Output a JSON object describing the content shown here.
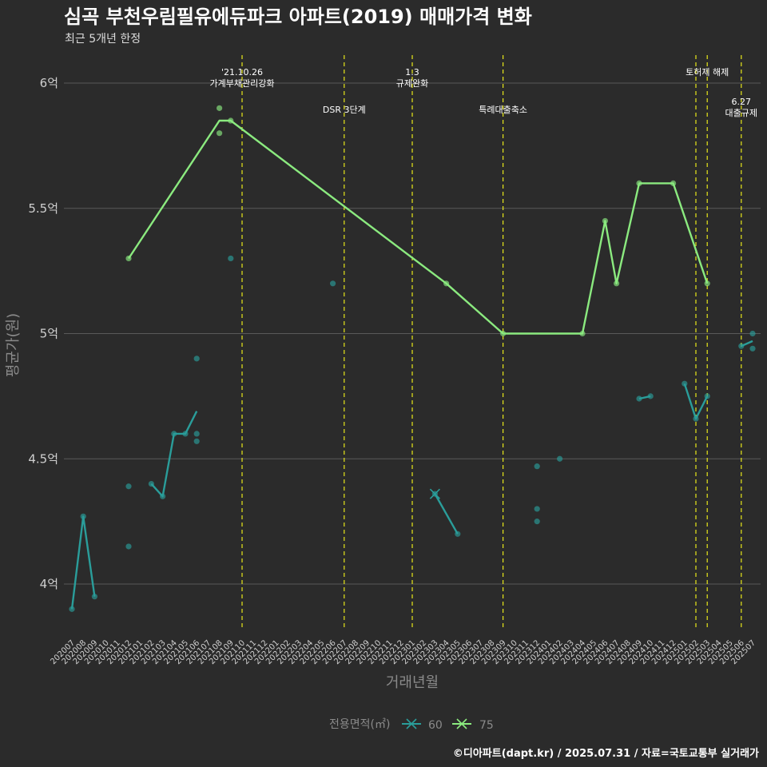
{
  "colors": {
    "background": "#2b2b2b",
    "grid": "#5a5a5a",
    "series_60": "#2a9d9a",
    "series_75": "#8bea7f",
    "event_line": "#e8e81a"
  },
  "chart_data": {
    "type": "line",
    "title": "심곡 부천우림필유에듀파크 아파트(2019) 매매가격 변화",
    "subtitle": "최근 5개년 한정",
    "xlabel": "거래년월",
    "ylabel": "평균가(원)",
    "caption": "©디아파트(dapt.kr) / 2025.07.31 / 자료=국토교통부 실거래가",
    "ylim": [
      3.8,
      6.1
    ],
    "yticks": [
      {
        "value": 4.0,
        "label": "4억"
      },
      {
        "value": 4.5,
        "label": "4.5억"
      },
      {
        "value": 5.0,
        "label": "5억"
      },
      {
        "value": 5.5,
        "label": "5.5억"
      },
      {
        "value": 6.0,
        "label": "6억"
      }
    ],
    "categories": [
      "202007",
      "202008",
      "202009",
      "202010",
      "202011",
      "202012",
      "202101",
      "202102",
      "202103",
      "202104",
      "202105",
      "202106",
      "202107",
      "202108",
      "202109",
      "202110",
      "202111",
      "202112",
      "202201",
      "202202",
      "202203",
      "202204",
      "202205",
      "202206",
      "202207",
      "202208",
      "202209",
      "202210",
      "202211",
      "202212",
      "202301",
      "202302",
      "202303",
      "202304",
      "202305",
      "202306",
      "202307",
      "202308",
      "202309",
      "202310",
      "202311",
      "202312",
      "202401",
      "202402",
      "202403",
      "202404",
      "202405",
      "202406",
      "202407",
      "202408",
      "202409",
      "202410",
      "202411",
      "202412",
      "202501",
      "202502",
      "202503",
      "202504",
      "202505",
      "202506",
      "202507"
    ],
    "legend": {
      "title": "전용면적(㎡)",
      "placement": "bottom",
      "items": [
        {
          "name": "60",
          "color": "#2a9d9a"
        },
        {
          "name": "75",
          "color": "#8bea7f"
        }
      ]
    },
    "series": [
      {
        "name": "60",
        "color": "#2a9d9a",
        "lines": [
          [
            [
              "202007",
              3.9
            ],
            [
              "202008",
              4.27
            ],
            [
              "202009",
              3.95
            ]
          ],
          [
            [
              "202102",
              4.4
            ],
            [
              "202103",
              4.35
            ],
            [
              "202104",
              4.6
            ],
            [
              "202105",
              4.6
            ],
            [
              "202106",
              4.69
            ]
          ],
          [
            [
              "202303",
              4.36
            ],
            [
              "202305",
              4.2
            ]
          ],
          [
            [
              "202409",
              4.74
            ],
            [
              "202410",
              4.75
            ]
          ],
          [
            [
              "202501",
              4.8
            ],
            [
              "202502",
              4.66
            ],
            [
              "202503",
              4.75
            ]
          ],
          [
            [
              "202506",
              4.95
            ],
            [
              "202507",
              4.97
            ]
          ]
        ],
        "points": [
          [
            "202007",
            3.9
          ],
          [
            "202008",
            4.27
          ],
          [
            "202009",
            3.95
          ],
          [
            "202012",
            4.15
          ],
          [
            "202012",
            4.39
          ],
          [
            "202102",
            4.4
          ],
          [
            "202103",
            4.35
          ],
          [
            "202104",
            4.6
          ],
          [
            "202105",
            4.6
          ],
          [
            "202106",
            4.57
          ],
          [
            "202106",
            4.6
          ],
          [
            "202106",
            4.9
          ],
          [
            "202109",
            5.3
          ],
          [
            "202206",
            5.2
          ],
          [
            "202303",
            4.36
          ],
          [
            "202305",
            4.2
          ],
          [
            "202312",
            4.25
          ],
          [
            "202312",
            4.3
          ],
          [
            "202312",
            4.47
          ],
          [
            "202402",
            4.5
          ],
          [
            "202409",
            4.74
          ],
          [
            "202410",
            4.75
          ],
          [
            "202501",
            4.8
          ],
          [
            "202502",
            4.66
          ],
          [
            "202503",
            4.75
          ],
          [
            "202506",
            4.95
          ],
          [
            "202507",
            4.94
          ],
          [
            "202507",
            5.0
          ]
        ],
        "markers_x": [
          [
            "202303",
            4.36
          ]
        ]
      },
      {
        "name": "75",
        "color": "#8bea7f",
        "lines": [
          [
            [
              "202012",
              5.3
            ],
            [
              "202108",
              5.85
            ],
            [
              "202109",
              5.85
            ],
            [
              "202304",
              5.2
            ],
            [
              "202309",
              5.0
            ],
            [
              "202404",
              5.0
            ],
            [
              "202406",
              5.45
            ],
            [
              "202407",
              5.2
            ],
            [
              "202409",
              5.6
            ],
            [
              "202412",
              5.6
            ],
            [
              "202503",
              5.2
            ]
          ]
        ],
        "points": [
          [
            "202012",
            5.3
          ],
          [
            "202108",
            5.8
          ],
          [
            "202108",
            5.9
          ],
          [
            "202109",
            5.85
          ],
          [
            "202304",
            5.2
          ],
          [
            "202309",
            5.0
          ],
          [
            "202404",
            5.0
          ],
          [
            "202406",
            5.45
          ],
          [
            "202407",
            5.2
          ],
          [
            "202409",
            5.6
          ],
          [
            "202412",
            5.6
          ],
          [
            "202503",
            5.2
          ]
        ]
      }
    ],
    "events": [
      {
        "x": "202110",
        "lines": [
          "'21.10.26",
          "가계부채관리강화"
        ],
        "level": 1
      },
      {
        "x": "202207",
        "lines": [
          "DSR 3단계"
        ],
        "level": 2
      },
      {
        "x": "202301",
        "lines": [
          "1.3",
          "규제완화"
        ],
        "level": 1
      },
      {
        "x": "202309",
        "lines": [
          "특례대출축소"
        ],
        "level": 2
      },
      {
        "x": "202502",
        "lines": [],
        "level": 1
      },
      {
        "x": "202503",
        "lines": [
          "토허제 해제"
        ],
        "level": 1
      },
      {
        "x": "202506",
        "lines": [
          "6.27",
          "대출규제"
        ],
        "level": 3
      }
    ]
  }
}
